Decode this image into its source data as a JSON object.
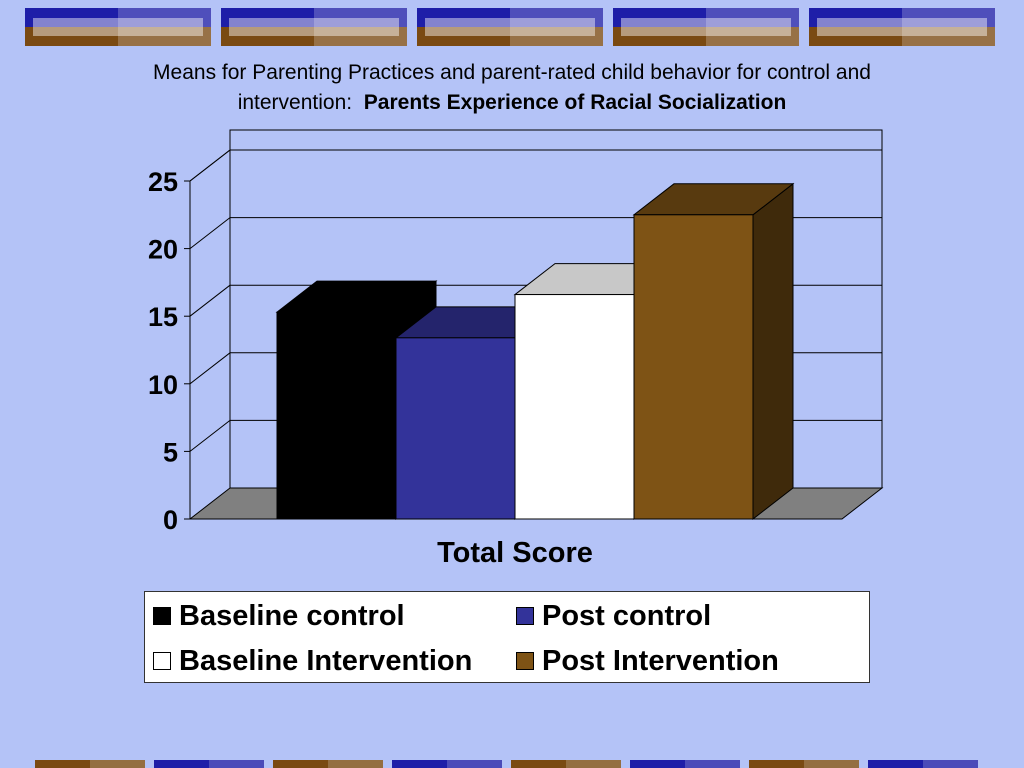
{
  "title": {
    "line1": "Means for Parenting Practices and parent-rated child behavior for control and",
    "line2_prefix": "intervention:",
    "line2_bold": "Parents Experience of Racial Socialization"
  },
  "colors": {
    "background": "#b4c3f7",
    "deco_blue": "#1e1ea8",
    "deco_brown": "#7a4a12"
  },
  "chart_data": {
    "type": "bar",
    "style": "3d",
    "categories": [
      "Total Score"
    ],
    "series": [
      {
        "name": "Baseline control",
        "values": [
          15.3
        ],
        "color": "#000000"
      },
      {
        "name": "Post control",
        "values": [
          13.4
        ],
        "color": "#33339a"
      },
      {
        "name": "Baseline Intervention",
        "values": [
          16.6
        ],
        "color": "#ffffff"
      },
      {
        "name": "Post Intervention",
        "values": [
          22.5
        ],
        "color": "#7e5315"
      }
    ],
    "yticks": [
      "0",
      "5",
      "10",
      "15",
      "20",
      "25"
    ],
    "ylim": [
      0,
      25
    ],
    "xlabel": "Total Score",
    "grid": true,
    "legend_position": "bottom"
  }
}
